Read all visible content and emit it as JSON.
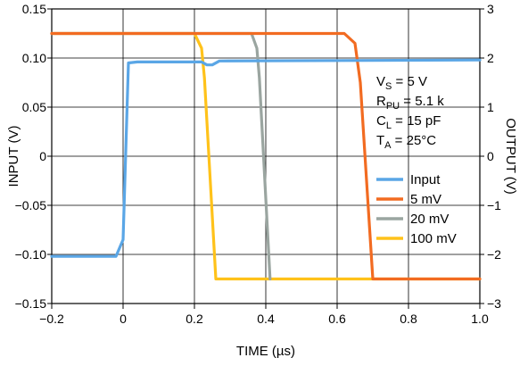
{
  "chart_data": {
    "type": "line",
    "xlabel": "TIME (µs)",
    "ylabel_left": "INPUT (V)",
    "ylabel_right": "OUTPUT (V)",
    "xlim": [
      -0.2,
      1.0
    ],
    "ylim_left": [
      -0.15,
      0.15
    ],
    "ylim_right": [
      -3,
      3
    ],
    "grid": true,
    "legend_placement": "right",
    "x_ticks": [
      "−0.2",
      "0",
      "0.2",
      "0.4",
      "0.6",
      "0.8",
      "1.0"
    ],
    "y_left_ticks": [
      "0.15",
      "0.10",
      "0.05",
      "0",
      "−0.05",
      "−0.10",
      "−0.15"
    ],
    "y_right_ticks": [
      "3",
      "2",
      "1",
      "0",
      "−1",
      "−2",
      "−3"
    ],
    "annotations": {
      "vs": {
        "pre": "V",
        "sub": "S",
        "post": " = 5 V"
      },
      "rpu": {
        "pre": "R",
        "sub": "PU",
        "post": " = 5.1 k"
      },
      "cl": {
        "pre": "C",
        "sub": "L",
        "post": " = 15 pF"
      },
      "ta": {
        "pre": "T",
        "sub": "A",
        "post": " = 25°C"
      }
    },
    "series": [
      {
        "name": "Input",
        "color": "#5aa6e6",
        "axis": "left",
        "x": [
          -0.2,
          -0.02,
          0.0,
          0.015,
          0.04,
          0.22,
          0.235,
          0.25,
          0.27,
          1.0
        ],
        "y": [
          -0.102,
          -0.102,
          -0.085,
          0.095,
          0.096,
          0.096,
          0.093,
          0.093,
          0.097,
          0.098
        ]
      },
      {
        "name": "5 mV",
        "color": "#f26b21",
        "axis": "right",
        "x": [
          -0.2,
          0.62,
          0.65,
          0.665,
          0.7,
          1.0
        ],
        "y": [
          2.5,
          2.5,
          2.3,
          1.5,
          -2.5,
          -2.5
        ]
      },
      {
        "name": "20 mV",
        "color": "#9aa5a0",
        "axis": "right",
        "x": [
          -0.2,
          0.36,
          0.375,
          0.382,
          0.412
        ],
        "y": [
          2.5,
          2.5,
          2.2,
          1.6,
          -2.5
        ]
      },
      {
        "name": "100 mV",
        "color": "#ffc21a",
        "axis": "right",
        "x": [
          -0.2,
          0.2,
          0.22,
          0.228,
          0.26,
          1.0
        ],
        "y": [
          2.5,
          2.5,
          2.2,
          1.6,
          -2.5,
          -2.5
        ]
      }
    ]
  }
}
